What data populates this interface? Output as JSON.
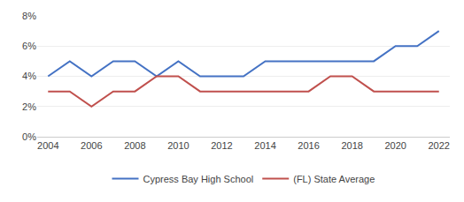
{
  "chart_data": {
    "type": "line",
    "x": [
      2004,
      2005,
      2006,
      2007,
      2008,
      2009,
      2010,
      2011,
      2012,
      2013,
      2014,
      2015,
      2016,
      2017,
      2018,
      2019,
      2020,
      2021,
      2022
    ],
    "series": [
      {
        "name": "Cypress Bay High School",
        "color": "#4472c4",
        "values": [
          4.0,
          5.0,
          4.0,
          5.0,
          5.0,
          4.0,
          5.0,
          4.0,
          4.0,
          4.0,
          5.0,
          5.0,
          5.0,
          5.0,
          5.0,
          5.0,
          6.0,
          6.0,
          7.0
        ]
      },
      {
        "name": "(FL) State Average",
        "color": "#c0504d",
        "values": [
          3.0,
          3.0,
          2.0,
          3.0,
          3.0,
          4.0,
          4.0,
          3.0,
          3.0,
          3.0,
          3.0,
          3.0,
          3.0,
          4.0,
          4.0,
          3.0,
          3.0,
          3.0,
          3.0
        ]
      }
    ],
    "xlim": [
      2003.5,
      2022.5
    ],
    "ylim": [
      0,
      8
    ],
    "xticks": [
      2004,
      2006,
      2008,
      2010,
      2012,
      2014,
      2016,
      2018,
      2020,
      2022
    ],
    "yticks": [
      {
        "value": 0,
        "label": "0%"
      },
      {
        "value": 2,
        "label": "2%"
      },
      {
        "value": 4,
        "label": "4%"
      },
      {
        "value": 6,
        "label": "6%"
      },
      {
        "value": 8,
        "label": "8%"
      }
    ],
    "grid": true,
    "legend": "bottom"
  }
}
